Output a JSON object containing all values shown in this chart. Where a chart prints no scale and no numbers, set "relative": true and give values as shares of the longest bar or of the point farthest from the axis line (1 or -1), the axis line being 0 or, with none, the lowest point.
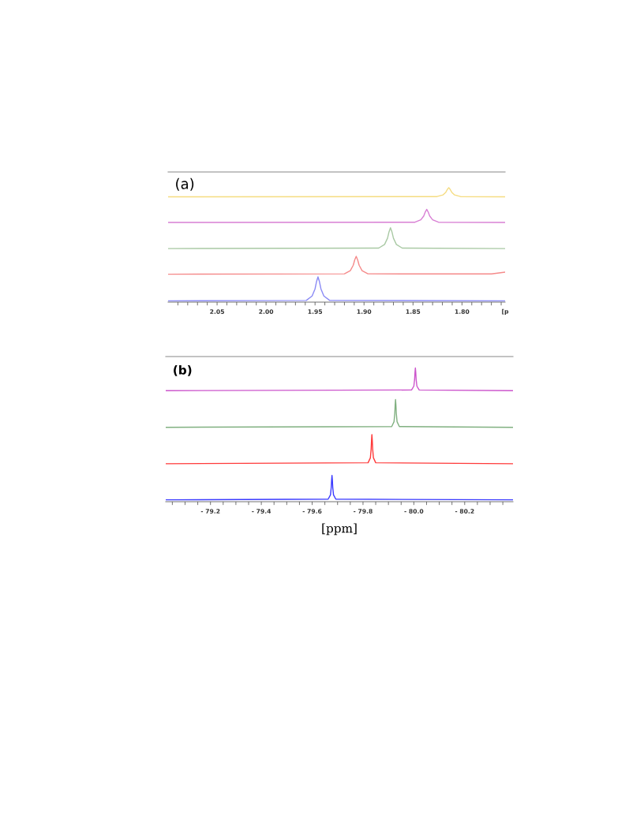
{
  "chart_data": [
    {
      "type": "line",
      "relative": true,
      "xlabel": "[p",
      "annotations": [
        "(a)"
      ],
      "grid": false,
      "legend": false,
      "xlim": [
        2.1,
        1.756
      ],
      "xticks": [
        {
          "value": 2.09,
          "label": null
        },
        {
          "value": 2.08,
          "label": null
        },
        {
          "value": 2.07,
          "label": null
        },
        {
          "value": 2.06,
          "label": null
        },
        {
          "value": 2.05,
          "label": "2.05"
        },
        {
          "value": 2.04,
          "label": null
        },
        {
          "value": 2.03,
          "label": null
        },
        {
          "value": 2.02,
          "label": null
        },
        {
          "value": 2.01,
          "label": null
        },
        {
          "value": 2.0,
          "label": "2.00"
        },
        {
          "value": 1.99,
          "label": null
        },
        {
          "value": 1.98,
          "label": null
        },
        {
          "value": 1.97,
          "label": null
        },
        {
          "value": 1.96,
          "label": null
        },
        {
          "value": 1.95,
          "label": "1.95"
        },
        {
          "value": 1.94,
          "label": null
        },
        {
          "value": 1.93,
          "label": null
        },
        {
          "value": 1.92,
          "label": null
        },
        {
          "value": 1.91,
          "label": null
        },
        {
          "value": 1.9,
          "label": "1.90"
        },
        {
          "value": 1.89,
          "label": null
        },
        {
          "value": 1.88,
          "label": null
        },
        {
          "value": 1.87,
          "label": null
        },
        {
          "value": 1.86,
          "label": null
        },
        {
          "value": 1.85,
          "label": "1.85"
        },
        {
          "value": 1.84,
          "label": null
        },
        {
          "value": 1.83,
          "label": null
        },
        {
          "value": 1.82,
          "label": null
        },
        {
          "value": 1.81,
          "label": null
        },
        {
          "value": 1.8,
          "label": "1.80"
        },
        {
          "value": 1.79,
          "label": null
        },
        {
          "value": 1.78,
          "label": null
        },
        {
          "value": 1.77,
          "label": null
        },
        {
          "value": 1.76,
          "label": null
        }
      ],
      "series": [
        {
          "color": "#f5dc80",
          "x": [
            2.1,
            1.8255,
            1.8195,
            1.8165,
            1.815,
            1.8135,
            1.812,
            1.8105,
            1.8075,
            1.8015,
            1.756
          ],
          "values": [
            0.92,
            0.922,
            0.936,
            0.96,
            0.984,
            1.0,
            0.984,
            0.96,
            0.936,
            0.922,
            0.92
          ]
        },
        {
          "color": "#d87fd4",
          "x": [
            2.1,
            1.848,
            1.842,
            1.839,
            1.8375,
            1.836,
            1.8345,
            1.833,
            1.83,
            1.824,
            1.756
          ],
          "values": [
            0.696,
            0.698,
            0.719,
            0.753,
            0.787,
            0.81,
            0.787,
            0.753,
            0.719,
            0.698,
            0.696
          ]
        },
        {
          "color": "#a9c9a4",
          "x": [
            2.1,
            1.885,
            1.879,
            1.876,
            1.8745,
            1.873,
            1.8715,
            1.87,
            1.867,
            1.861,
            1.756
          ],
          "values": [
            0.468,
            0.472,
            0.504,
            0.559,
            0.614,
            0.65,
            0.614,
            0.559,
            0.504,
            0.472,
            0.468
          ]
        },
        {
          "color": "#f58a8a",
          "x": [
            2.1,
            1.92,
            1.914,
            1.911,
            1.9095,
            1.908,
            1.9065,
            1.905,
            1.902,
            1.896,
            1.77,
            1.756
          ],
          "values": [
            0.244,
            0.247,
            0.275,
            0.322,
            0.369,
            0.4,
            0.369,
            0.322,
            0.275,
            0.247,
            0.246,
            0.262
          ]
        },
        {
          "color": "#8a8af5",
          "x": [
            2.1,
            1.959,
            1.953,
            1.95,
            1.9485,
            1.947,
            1.9455,
            1.944,
            1.941,
            1.935,
            1.756
          ],
          "values": [
            0.011,
            0.015,
            0.053,
            0.116,
            0.179,
            0.221,
            0.179,
            0.116,
            0.053,
            0.015,
            0.011
          ]
        }
      ]
    },
    {
      "type": "line",
      "relative": true,
      "xlabel": "[ppm]",
      "annotations": [
        "(b)"
      ],
      "grid": false,
      "legend": false,
      "xlim": [
        -79.024,
        -80.39
      ],
      "xticks": [
        {
          "value": -79.05,
          "label": null
        },
        {
          "value": -79.1,
          "label": null
        },
        {
          "value": -79.15,
          "label": null
        },
        {
          "value": -79.2,
          "label": "- 79.2"
        },
        {
          "value": -79.25,
          "label": null
        },
        {
          "value": -79.3,
          "label": null
        },
        {
          "value": -79.35,
          "label": null
        },
        {
          "value": -79.4,
          "label": "- 79.4"
        },
        {
          "value": -79.45,
          "label": null
        },
        {
          "value": -79.5,
          "label": null
        },
        {
          "value": -79.55,
          "label": null
        },
        {
          "value": -79.6,
          "label": "- 79.6"
        },
        {
          "value": -79.65,
          "label": null
        },
        {
          "value": -79.7,
          "label": null
        },
        {
          "value": -79.75,
          "label": null
        },
        {
          "value": -79.8,
          "label": "- 79.8"
        },
        {
          "value": -79.85,
          "label": null
        },
        {
          "value": -79.9,
          "label": null
        },
        {
          "value": -79.95,
          "label": null
        },
        {
          "value": -80.0,
          "label": "- 80.0"
        },
        {
          "value": -80.05,
          "label": null
        },
        {
          "value": -80.1,
          "label": null
        },
        {
          "value": -80.15,
          "label": null
        },
        {
          "value": -80.2,
          "label": "- 80.2"
        },
        {
          "value": -80.25,
          "label": null
        },
        {
          "value": -80.3,
          "label": null
        },
        {
          "value": -80.35,
          "label": null
        }
      ],
      "series": [
        {
          "color": "#cc55cc",
          "x": [
            -79.024,
            -79.991,
            -80.0,
            -80.003,
            -80.0045,
            -80.006,
            -80.0075,
            -80.009,
            -80.012,
            -80.021,
            -80.39
          ],
          "values": [
            0.83,
            0.835,
            0.864,
            0.915,
            0.966,
            1.0,
            0.966,
            0.915,
            0.864,
            0.835,
            0.83
          ]
        },
        {
          "color": "#80b080",
          "x": [
            -79.024,
            -79.913,
            -79.922,
            -79.925,
            -79.9265,
            -79.928,
            -79.9295,
            -79.931,
            -79.934,
            -79.943,
            -80.39
          ],
          "values": [
            0.556,
            0.562,
            0.598,
            0.66,
            0.722,
            0.764,
            0.722,
            0.66,
            0.598,
            0.562,
            0.556
          ]
        },
        {
          "color": "#ff3a3a",
          "x": [
            -79.024,
            -79.82,
            -79.829,
            -79.832,
            -79.8335,
            -79.835,
            -79.8365,
            -79.838,
            -79.841,
            -79.85,
            -80.39
          ],
          "values": [
            0.284,
            0.291,
            0.328,
            0.393,
            0.458,
            0.502,
            0.458,
            0.393,
            0.328,
            0.291,
            0.284
          ]
        },
        {
          "color": "#3a3aff",
          "x": [
            -79.024,
            -79.663,
            -79.672,
            -79.675,
            -79.6765,
            -79.678,
            -79.6795,
            -79.681,
            -79.684,
            -79.693,
            -80.39
          ],
          "values": [
            0.014,
            0.019,
            0.051,
            0.106,
            0.16,
            0.197,
            0.16,
            0.106,
            0.051,
            0.019,
            0.014
          ]
        }
      ]
    }
  ]
}
